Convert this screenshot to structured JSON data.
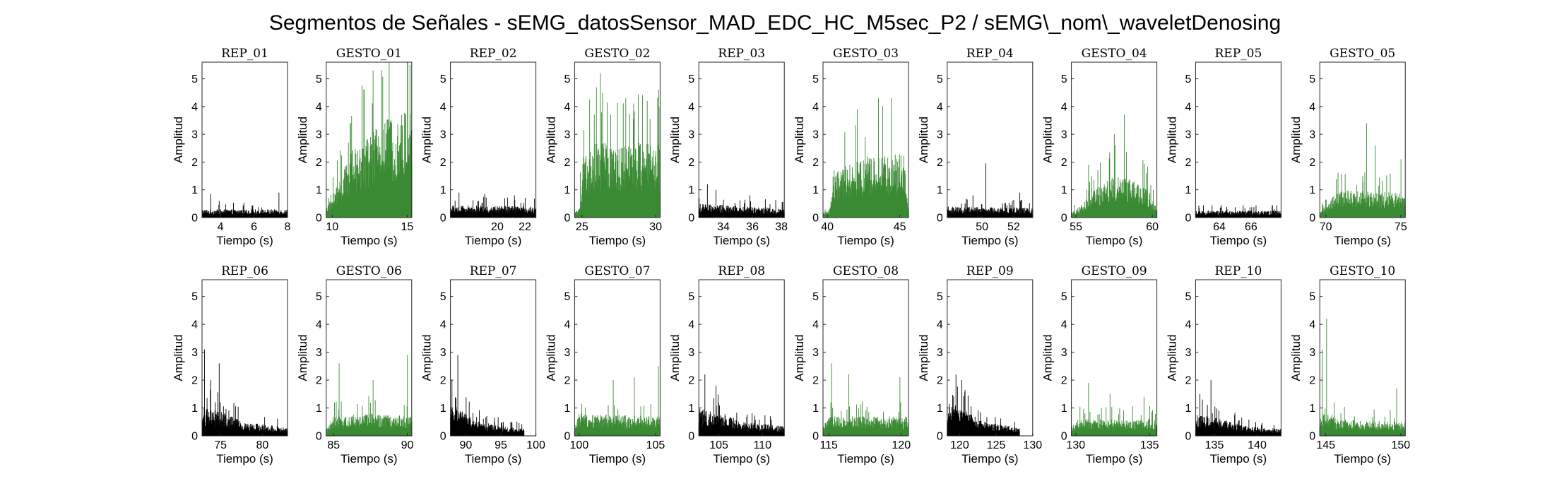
{
  "figure": {
    "title": "Segmentos de Señales - sEMG_datosSensor_MAD_EDC_HC_M5sec_P2 / sEMG\\_nom\\_waveletDenosing"
  },
  "colors": {
    "rep": "#000000",
    "gesto": "#3a8a33"
  },
  "chart_data": [
    {
      "type": "area",
      "title": "REP_01",
      "xlabel": "Tiempo (s)",
      "ylabel": "Amplitud",
      "xlim": [
        2.9,
        8
      ],
      "ylim": [
        0,
        5.6
      ],
      "xticks": [
        4,
        6,
        8
      ],
      "yticks": [
        0,
        1,
        2,
        3,
        4,
        5
      ],
      "x_range": [
        2.9,
        8
      ],
      "envelope": [
        [
          0,
          0.3
        ],
        [
          1,
          0.3
        ]
      ],
      "peaks": [
        [
          0.1,
          0.85
        ],
        [
          0.2,
          0.6
        ],
        [
          0.9,
          0.9
        ]
      ],
      "color": "rep"
    },
    {
      "type": "area",
      "title": "GESTO_01",
      "xlabel": "Tiempo (s)",
      "ylabel": "Amplitud",
      "xlim": [
        9.6,
        15.3
      ],
      "ylim": [
        0,
        5.6
      ],
      "xticks": [
        10,
        15
      ],
      "yticks": [
        0,
        1,
        2,
        3,
        4,
        5
      ],
      "x_range": [
        9.6,
        15.3
      ],
      "envelope": [
        [
          0,
          0.3
        ],
        [
          0.1,
          1.0
        ],
        [
          0.3,
          2.4
        ],
        [
          0.5,
          3.0
        ],
        [
          0.7,
          3.6
        ],
        [
          1,
          4.0
        ]
      ],
      "peaks": [
        [
          0.55,
          5.3
        ],
        [
          0.65,
          5.3
        ],
        [
          0.98,
          5.5
        ]
      ],
      "color": "gesto"
    },
    {
      "type": "area",
      "title": "REP_02",
      "xlabel": "Tiempo (s)",
      "ylabel": "Amplitud",
      "xlim": [
        16.6,
        22.8
      ],
      "ylim": [
        0,
        5.6
      ],
      "xticks": [
        20,
        22
      ],
      "yticks": [
        0,
        1,
        2,
        3,
        4,
        5
      ],
      "x_range": [
        16.6,
        22.8
      ],
      "envelope": [
        [
          0,
          0.45
        ],
        [
          1,
          0.4
        ]
      ],
      "peaks": [
        [
          0.1,
          0.9
        ],
        [
          0.4,
          0.85
        ],
        [
          0.75,
          0.8
        ]
      ],
      "color": "rep"
    },
    {
      "type": "area",
      "title": "GESTO_02",
      "xlabel": "Tiempo (s)",
      "ylabel": "Amplitud",
      "xlim": [
        24.5,
        30.3
      ],
      "ylim": [
        0,
        5.6
      ],
      "xticks": [
        25,
        30
      ],
      "yticks": [
        0,
        1,
        2,
        3,
        4,
        5
      ],
      "x_range": [
        24.5,
        30.3
      ],
      "envelope": [
        [
          0,
          0.2
        ],
        [
          0.05,
          0.3
        ],
        [
          0.1,
          2.2
        ],
        [
          0.25,
          2.7
        ],
        [
          1,
          2.7
        ]
      ],
      "peaks": [
        [
          0.3,
          5.2
        ],
        [
          0.6,
          4.3
        ],
        [
          0.85,
          4.2
        ]
      ],
      "color": "gesto"
    },
    {
      "type": "area",
      "title": "REP_03",
      "xlabel": "Tiempo (s)",
      "ylabel": "Amplitud",
      "xlim": [
        32.3,
        38.2
      ],
      "ylim": [
        0,
        5.6
      ],
      "xticks": [
        34,
        36,
        38
      ],
      "yticks": [
        0,
        1,
        2,
        3,
        4,
        5
      ],
      "x_range": [
        32.3,
        38.2
      ],
      "envelope": [
        [
          0,
          0.5
        ],
        [
          1,
          0.35
        ]
      ],
      "peaks": [
        [
          0.1,
          1.2
        ],
        [
          0.2,
          1.0
        ],
        [
          0.6,
          0.8
        ]
      ],
      "color": "rep"
    },
    {
      "type": "area",
      "title": "GESTO_03",
      "xlabel": "Tiempo (s)",
      "ylabel": "Amplitud",
      "xlim": [
        39.7,
        45.6
      ],
      "ylim": [
        0,
        5.6
      ],
      "xticks": [
        40,
        45
      ],
      "yticks": [
        0,
        1,
        2,
        3,
        4,
        5
      ],
      "x_range": [
        39.7,
        45.6
      ],
      "envelope": [
        [
          0,
          0.2
        ],
        [
          0.08,
          0.3
        ],
        [
          0.12,
          1.7
        ],
        [
          0.5,
          2.2
        ],
        [
          0.95,
          2.3
        ],
        [
          1,
          0.4
        ]
      ],
      "peaks": [
        [
          0.65,
          4.3
        ],
        [
          0.8,
          4.3
        ],
        [
          0.4,
          3.9
        ]
      ],
      "color": "gesto"
    },
    {
      "type": "area",
      "title": "REP_04",
      "xlabel": "Tiempo (s)",
      "ylabel": "Amplitud",
      "xlim": [
        47.8,
        53.2
      ],
      "ylim": [
        0,
        5.6
      ],
      "xticks": [
        50,
        52
      ],
      "yticks": [
        0,
        1,
        2,
        3,
        4,
        5
      ],
      "x_range": [
        47.8,
        53.2
      ],
      "envelope": [
        [
          0,
          0.4
        ],
        [
          1,
          0.35
        ]
      ],
      "peaks": [
        [
          0.45,
          1.95
        ],
        [
          0.3,
          0.8
        ],
        [
          0.85,
          0.9
        ]
      ],
      "color": "rep"
    },
    {
      "type": "area",
      "title": "GESTO_04",
      "xlabel": "Tiempo (s)",
      "ylabel": "Amplitud",
      "xlim": [
        54.7,
        60.3
      ],
      "ylim": [
        0,
        5.6
      ],
      "xticks": [
        55,
        60
      ],
      "yticks": [
        0,
        1,
        2,
        3,
        4,
        5
      ],
      "x_range": [
        54.7,
        60.3
      ],
      "envelope": [
        [
          0,
          0.2
        ],
        [
          0.1,
          0.4
        ],
        [
          0.3,
          1.1
        ],
        [
          0.55,
          1.6
        ],
        [
          0.7,
          1.5
        ],
        [
          0.92,
          1.0
        ],
        [
          1,
          0.3
        ]
      ],
      "peaks": [
        [
          0.62,
          3.7
        ],
        [
          0.5,
          3.0
        ],
        [
          0.2,
          1.9
        ]
      ],
      "color": "gesto"
    },
    {
      "type": "area",
      "title": "REP_05",
      "xlabel": "Tiempo (s)",
      "ylabel": "Amplitud",
      "xlim": [
        62.5,
        67.9
      ],
      "ylim": [
        0,
        5.6
      ],
      "xticks": [
        64,
        66
      ],
      "yticks": [
        0,
        1,
        2,
        3,
        4,
        5
      ],
      "x_range": [
        62.5,
        67.9
      ],
      "envelope": [
        [
          0,
          0.25
        ],
        [
          1,
          0.25
        ]
      ],
      "peaks": [
        [
          0.3,
          0.45
        ],
        [
          0.9,
          0.45
        ]
      ],
      "color": "rep"
    },
    {
      "type": "area",
      "title": "GESTO_05",
      "xlabel": "Tiempo (s)",
      "ylabel": "Amplitud",
      "xlim": [
        69.6,
        75.3
      ],
      "ylim": [
        0,
        5.6
      ],
      "xticks": [
        70,
        75
      ],
      "yticks": [
        0,
        1,
        2,
        3,
        4,
        5
      ],
      "x_range": [
        69.6,
        75.3
      ],
      "envelope": [
        [
          0,
          0.3
        ],
        [
          0.1,
          0.5
        ],
        [
          0.2,
          1.0
        ],
        [
          1,
          0.9
        ]
      ],
      "peaks": [
        [
          0.55,
          3.4
        ],
        [
          0.65,
          2.6
        ],
        [
          0.95,
          2.1
        ]
      ],
      "color": "gesto"
    },
    {
      "type": "area",
      "title": "REP_06",
      "xlabel": "Tiempo (s)",
      "ylabel": "Amplitud",
      "xlim": [
        72.8,
        83
      ],
      "ylim": [
        0,
        5.6
      ],
      "xticks": [
        75,
        80
      ],
      "yticks": [
        0,
        1,
        2,
        3,
        4,
        5
      ],
      "x_range": [
        72.8,
        83
      ],
      "envelope": [
        [
          0,
          1.0
        ],
        [
          0.2,
          0.9
        ],
        [
          0.5,
          0.5
        ],
        [
          1,
          0.3
        ]
      ],
      "peaks": [
        [
          0.03,
          3.1
        ],
        [
          0.2,
          2.6
        ],
        [
          0.1,
          2.0
        ]
      ],
      "color": "rep"
    },
    {
      "type": "area",
      "title": "GESTO_06",
      "xlabel": "Tiempo (s)",
      "ylabel": "Amplitud",
      "xlim": [
        84.5,
        90.3
      ],
      "ylim": [
        0,
        5.6
      ],
      "xticks": [
        85,
        90
      ],
      "yticks": [
        0,
        1,
        2,
        3,
        4,
        5
      ],
      "x_range": [
        84.5,
        90.3
      ],
      "envelope": [
        [
          0,
          0.2
        ],
        [
          0.08,
          0.7
        ],
        [
          0.5,
          0.8
        ],
        [
          1,
          0.7
        ]
      ],
      "peaks": [
        [
          0.15,
          2.6
        ],
        [
          0.55,
          2.0
        ],
        [
          0.95,
          2.9
        ]
      ],
      "color": "gesto"
    },
    {
      "type": "area",
      "title": "REP_07",
      "xlabel": "Tiempo (s)",
      "ylabel": "Amplitud",
      "xlim": [
        87.8,
        100
      ],
      "ylim": [
        0,
        5.6
      ],
      "xticks": [
        90,
        95,
        100
      ],
      "yticks": [
        0,
        1,
        2,
        3,
        4,
        5
      ],
      "x_range": [
        87.8,
        98.3
      ],
      "envelope": [
        [
          0,
          1.2
        ],
        [
          0.3,
          0.6
        ],
        [
          0.6,
          0.4
        ],
        [
          1,
          0.25
        ]
      ],
      "peaks": [
        [
          0.1,
          2.9
        ],
        [
          0.02,
          2.0
        ]
      ],
      "color": "rep"
    },
    {
      "type": "area",
      "title": "GESTO_07",
      "xlabel": "Tiempo (s)",
      "ylabel": "Amplitud",
      "xlim": [
        99.7,
        105.3
      ],
      "ylim": [
        0,
        5.6
      ],
      "xticks": [
        100,
        105
      ],
      "yticks": [
        0,
        1,
        2,
        3,
        4,
        5
      ],
      "x_range": [
        99.7,
        105.3
      ],
      "envelope": [
        [
          0,
          0.3
        ],
        [
          0.05,
          0.8
        ],
        [
          1,
          0.7
        ]
      ],
      "peaks": [
        [
          0.45,
          2.0
        ],
        [
          0.7,
          2.1
        ],
        [
          0.98,
          2.5
        ]
      ],
      "color": "gesto"
    },
    {
      "type": "area",
      "title": "REP_08",
      "xlabel": "Tiempo (s)",
      "ylabel": "Amplitud",
      "xlim": [
        102.7,
        112.5
      ],
      "ylim": [
        0,
        5.6
      ],
      "xticks": [
        105,
        110
      ],
      "yticks": [
        0,
        1,
        2,
        3,
        4,
        5
      ],
      "x_range": [
        102.7,
        112.5
      ],
      "envelope": [
        [
          0,
          1.0
        ],
        [
          0.3,
          0.8
        ],
        [
          0.5,
          0.5
        ],
        [
          1,
          0.35
        ]
      ],
      "peaks": [
        [
          0.07,
          2.2
        ],
        [
          0.2,
          1.8
        ]
      ],
      "color": "rep"
    },
    {
      "type": "area",
      "title": "GESTO_08",
      "xlabel": "Tiempo (s)",
      "ylabel": "Amplitud",
      "xlim": [
        114.6,
        120.5
      ],
      "ylim": [
        0,
        5.6
      ],
      "xticks": [
        115,
        120
      ],
      "yticks": [
        0,
        1,
        2,
        3,
        4,
        5
      ],
      "x_range": [
        114.6,
        120.5
      ],
      "envelope": [
        [
          0,
          0.3
        ],
        [
          0.06,
          0.7
        ],
        [
          1,
          0.7
        ]
      ],
      "peaks": [
        [
          0.1,
          2.6
        ],
        [
          0.3,
          2.2
        ],
        [
          0.9,
          2.1
        ]
      ],
      "color": "gesto"
    },
    {
      "type": "area",
      "title": "REP_09",
      "xlabel": "Tiempo (s)",
      "ylabel": "Amplitud",
      "xlim": [
        118.3,
        130
      ],
      "ylim": [
        0,
        5.6
      ],
      "xticks": [
        120,
        125,
        130
      ],
      "yticks": [
        0,
        1,
        2,
        3,
        4,
        5
      ],
      "x_range": [
        118.3,
        128.2
      ],
      "envelope": [
        [
          0,
          1.2
        ],
        [
          0.2,
          1.0
        ],
        [
          0.5,
          0.5
        ],
        [
          1,
          0.3
        ]
      ],
      "peaks": [
        [
          0.12,
          2.2
        ],
        [
          0.2,
          2.0
        ]
      ],
      "color": "rep"
    },
    {
      "type": "area",
      "title": "GESTO_09",
      "xlabel": "Tiempo (s)",
      "ylabel": "Amplitud",
      "xlim": [
        129.7,
        135.5
      ],
      "ylim": [
        0,
        5.6
      ],
      "xticks": [
        130,
        135
      ],
      "yticks": [
        0,
        1,
        2,
        3,
        4,
        5
      ],
      "x_range": [
        129.7,
        135.5
      ],
      "envelope": [
        [
          0,
          0.2
        ],
        [
          0.08,
          0.6
        ],
        [
          1,
          0.6
        ]
      ],
      "peaks": [
        [
          0.2,
          1.9
        ],
        [
          0.45,
          1.5
        ],
        [
          0.85,
          1.4
        ]
      ],
      "color": "gesto"
    },
    {
      "type": "area",
      "title": "REP_10",
      "xlabel": "Tiempo (s)",
      "ylabel": "Amplitud",
      "xlim": [
        132.8,
        142.8
      ],
      "ylim": [
        0,
        5.6
      ],
      "xticks": [
        135,
        140
      ],
      "yticks": [
        0,
        1,
        2,
        3,
        4,
        5
      ],
      "x_range": [
        132.8,
        142.8
      ],
      "envelope": [
        [
          0,
          0.8
        ],
        [
          0.3,
          0.6
        ],
        [
          0.6,
          0.35
        ],
        [
          1,
          0.25
        ]
      ],
      "peaks": [
        [
          0.18,
          2.0
        ],
        [
          0.05,
          1.5
        ]
      ],
      "color": "rep"
    },
    {
      "type": "area",
      "title": "GESTO_10",
      "xlabel": "Tiempo (s)",
      "ylabel": "Amplitud",
      "xlim": [
        144.6,
        150.3
      ],
      "ylim": [
        0,
        5.6
      ],
      "xticks": [
        145,
        150
      ],
      "yticks": [
        0,
        1,
        2,
        3,
        4,
        5
      ],
      "x_range": [
        144.6,
        150.3
      ],
      "envelope": [
        [
          0,
          0.3
        ],
        [
          0.06,
          1.0
        ],
        [
          0.2,
          0.6
        ],
        [
          1,
          0.5
        ]
      ],
      "peaks": [
        [
          0.08,
          4.2
        ],
        [
          0.03,
          3.1
        ],
        [
          0.9,
          1.7
        ]
      ],
      "color": "gesto"
    }
  ]
}
